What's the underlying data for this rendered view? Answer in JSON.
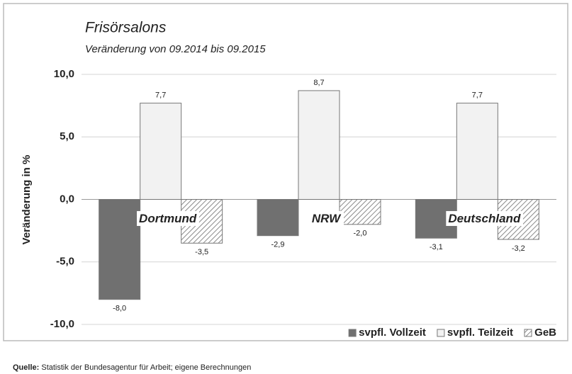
{
  "chart_data": {
    "type": "bar",
    "title": "Frisörsalons",
    "subtitle": "Veränderung von 09.2014 bis 09.2015",
    "y_label": "Veränderung in %",
    "categories": [
      "Dortmund",
      "NRW",
      "Deutschland"
    ],
    "series": [
      {
        "name": "svpfl. Vollzeit",
        "color": "#707070",
        "values": [
          -8.0,
          -2.9,
          -3.1
        ],
        "value_labels": [
          "-8,0",
          "-2,9",
          "-3,1"
        ]
      },
      {
        "name": "svpfl. Teilzeit",
        "color": "#f2f2f2",
        "values": [
          7.7,
          8.7,
          7.7
        ],
        "value_labels": [
          "7,7",
          "8,7",
          "7,7"
        ]
      },
      {
        "name": "GeB",
        "color": "#8a8a8a",
        "pattern": "hatch",
        "values": [
          -3.5,
          -2.0,
          -3.2
        ],
        "value_labels": [
          "-3,5",
          "-2,0",
          "-3,2"
        ]
      }
    ],
    "ylim": [
      -10,
      10
    ],
    "yticks": [
      {
        "value": 10,
        "label": "10,0"
      },
      {
        "value": 5,
        "label": "5,0"
      },
      {
        "value": 0,
        "label": "0,0"
      },
      {
        "value": -5,
        "label": "-5,0"
      },
      {
        "value": -10,
        "label": "-10,0"
      }
    ],
    "grid": true,
    "legend": "bottom-right",
    "source_label": "Quelle:",
    "source": "Statistik der Bundesagentur für Arbeit; eigene Berechnungen"
  }
}
